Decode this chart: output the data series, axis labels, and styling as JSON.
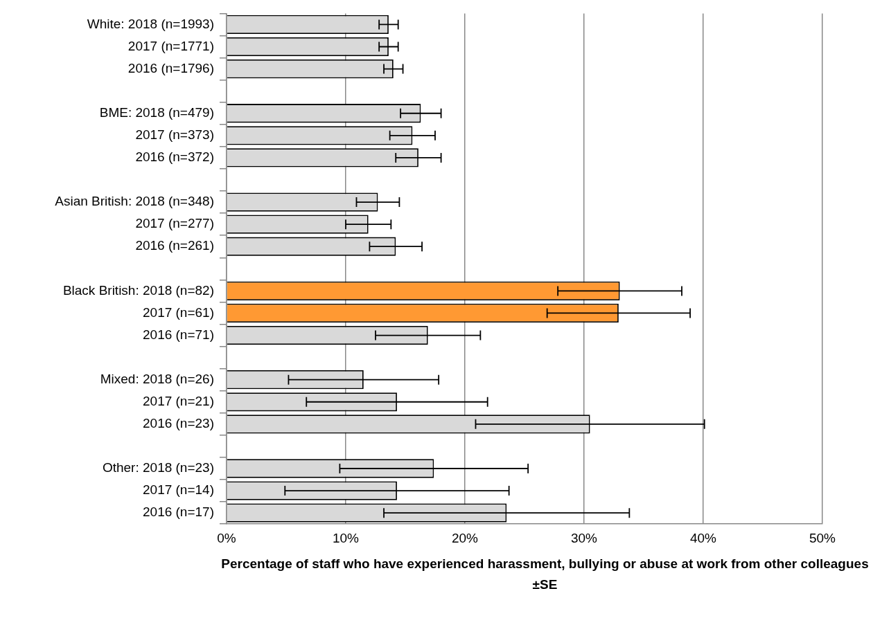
{
  "chart_data": {
    "type": "bar",
    "orientation": "horizontal",
    "xlabel": "Percentage of staff who have experienced harassment, bullying or abuse at work from other colleagues ±SE",
    "categories": [
      "White: 2018 (n=1993)",
      "2017 (n=1771)",
      "2016 (n=1796)",
      null,
      "BME: 2018 (n=479)",
      "2017 (n=373)",
      "2016 (n=372)",
      null,
      "Asian British: 2018 (n=348)",
      "2017 (n=277)",
      "2016 (n=261)",
      null,
      "Black British: 2018 (n=82)",
      "2017 (n=61)",
      "2016 (n=71)",
      null,
      "Mixed: 2018 (n=26)",
      "2017 (n=21)",
      "2016 (n=23)",
      null,
      "Other: 2018 (n=23)",
      "2017 (n=14)",
      "2016 (n=17)"
    ],
    "values": [
      13.6,
      13.6,
      14.0,
      null,
      16.3,
      15.6,
      16.1,
      null,
      12.7,
      11.9,
      14.2,
      null,
      33.0,
      32.9,
      16.9,
      null,
      11.5,
      14.3,
      30.5,
      null,
      17.4,
      14.3,
      23.5
    ],
    "errors": [
      0.8,
      0.8,
      0.8,
      null,
      1.7,
      1.9,
      1.9,
      null,
      1.8,
      1.9,
      2.2,
      null,
      5.2,
      6.0,
      4.4,
      null,
      6.3,
      7.6,
      9.6,
      null,
      7.9,
      9.4,
      10.3
    ],
    "colors": [
      "#d9d9d9",
      "#d9d9d9",
      "#d9d9d9",
      "#d9d9d9",
      "#d9d9d9",
      "#d9d9d9",
      "#d9d9d9",
      "#d9d9d9",
      "#d9d9d9",
      "#d9d9d9",
      "#d9d9d9",
      "#d9d9d9",
      "#ff9933",
      "#ff9933",
      "#d9d9d9",
      "#d9d9d9",
      "#d9d9d9",
      "#d9d9d9",
      "#d9d9d9",
      "#d9d9d9",
      "#d9d9d9",
      "#d9d9d9",
      "#d9d9d9"
    ],
    "xlim": [
      0,
      50
    ],
    "xticks": [
      {
        "value": 0,
        "label": "0%"
      },
      {
        "value": 10,
        "label": "10%"
      },
      {
        "value": 20,
        "label": "20%"
      },
      {
        "value": 30,
        "label": "30%"
      },
      {
        "value": 40,
        "label": "40%"
      },
      {
        "value": 50,
        "label": "50%"
      }
    ],
    "grid": "x",
    "legend": false
  }
}
